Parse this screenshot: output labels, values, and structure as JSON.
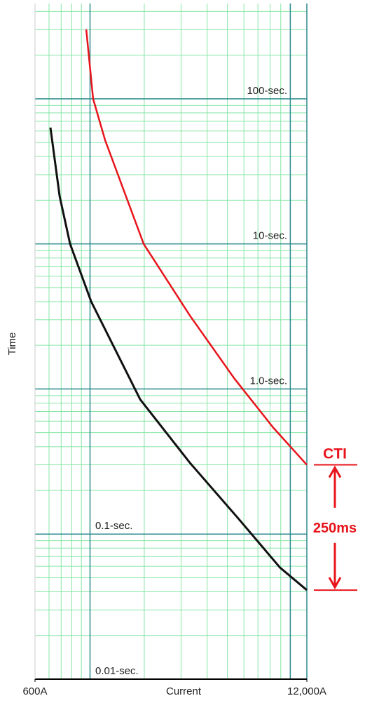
{
  "chart_data": {
    "type": "line",
    "x_label": "Current",
    "y_label": "Time",
    "xscale": "log",
    "yscale": "log",
    "xlim": [
      600,
      12000
    ],
    "ylim": [
      0.01,
      454
    ],
    "xticks": [
      {
        "value": 600,
        "label": "600A"
      },
      {
        "value": 12000,
        "label": "12,000A"
      }
    ],
    "x_major_lines": [
      1100,
      10000
    ],
    "yticks": [
      {
        "value": 100,
        "label": "100-sec."
      },
      {
        "value": 10,
        "label": "10-sec."
      },
      {
        "value": 1,
        "label": "1.0-sec."
      },
      {
        "value": 0.1,
        "label": "0.1-sec."
      },
      {
        "value": 0.01,
        "label": "0.01-sec."
      }
    ],
    "grid": true,
    "series": [
      {
        "color": "#e8141b",
        "x": [
          1055,
          1138,
          1299,
          1987,
          3300,
          5400,
          8300,
          12000
        ],
        "values": [
          301,
          100,
          51.9,
          10,
          3.22,
          1.18,
          0.54,
          0.3
        ]
      },
      {
        "color": "#111111",
        "x": [
          711,
          787,
          883,
          1113,
          1912,
          3300,
          5640,
          8940,
          12000
        ],
        "values": [
          63.4,
          21.3,
          10,
          4.02,
          0.847,
          0.311,
          0.128,
          0.0586,
          0.0411
        ]
      }
    ],
    "annotations": {
      "top_label": "CTI",
      "interval_label": "250ms",
      "color": "#e8141b"
    }
  }
}
